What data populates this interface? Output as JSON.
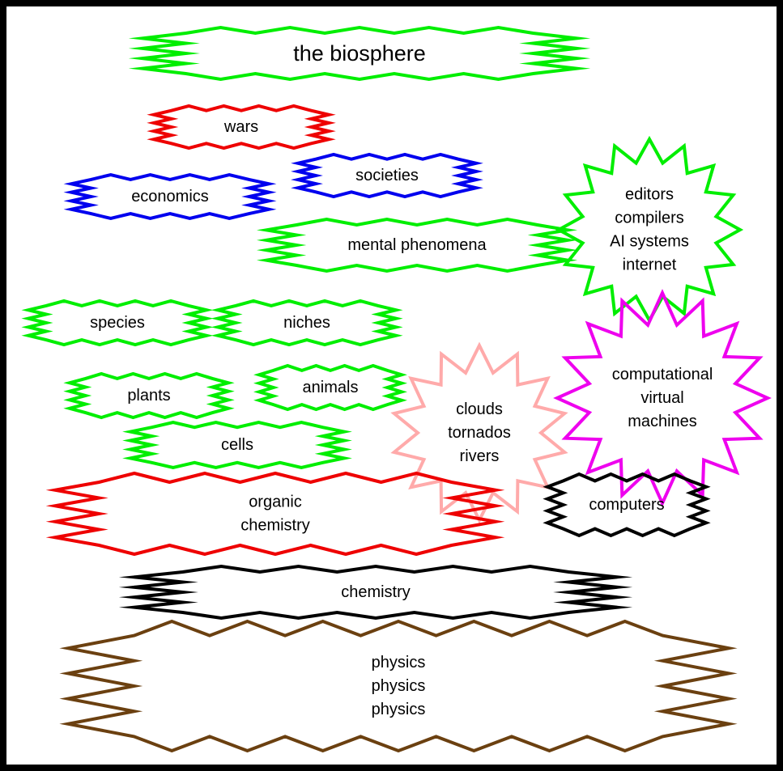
{
  "nodes": [
    {
      "id": "biosphere",
      "lines": [
        "the biosphere"
      ],
      "color": "#00ee00"
    },
    {
      "id": "wars",
      "lines": [
        "wars"
      ],
      "color": "#ee0000"
    },
    {
      "id": "societies",
      "lines": [
        "societies"
      ],
      "color": "#0000ee"
    },
    {
      "id": "economics",
      "lines": [
        "economics"
      ],
      "color": "#0000ee"
    },
    {
      "id": "mental",
      "lines": [
        "mental phenomena"
      ],
      "color": "#00ee00"
    },
    {
      "id": "software",
      "lines": [
        "editors",
        "compilers",
        "AI systems",
        "internet"
      ],
      "color": "#00ee00"
    },
    {
      "id": "species",
      "lines": [
        "species"
      ],
      "color": "#00ee00"
    },
    {
      "id": "niches",
      "lines": [
        "niches"
      ],
      "color": "#00ee00"
    },
    {
      "id": "plants",
      "lines": [
        "plants"
      ],
      "color": "#00ee00"
    },
    {
      "id": "animals",
      "lines": [
        "animals"
      ],
      "color": "#00ee00"
    },
    {
      "id": "cells",
      "lines": [
        "cells"
      ],
      "color": "#00ee00"
    },
    {
      "id": "weather",
      "lines": [
        "clouds",
        "tornados",
        "rivers"
      ],
      "color": "#ffaaaa"
    },
    {
      "id": "vms",
      "lines": [
        "computational",
        "virtual",
        "machines"
      ],
      "color": "#ee00ee"
    },
    {
      "id": "organic",
      "lines": [
        "organic",
        "chemistry"
      ],
      "color": "#ee0000"
    },
    {
      "id": "computers",
      "lines": [
        "computers"
      ],
      "color": "#000000"
    },
    {
      "id": "chemistry",
      "lines": [
        "chemistry"
      ],
      "color": "#000000"
    },
    {
      "id": "physics",
      "lines": [
        "physics",
        "physics",
        "physics"
      ],
      "color": "#6b4010"
    }
  ]
}
